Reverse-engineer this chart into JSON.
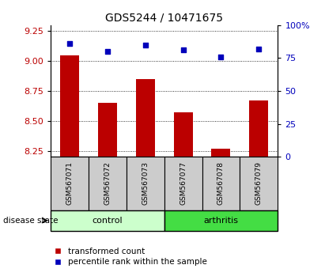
{
  "title": "GDS5244 / 10471675",
  "samples": [
    "GSM567071",
    "GSM567072",
    "GSM567073",
    "GSM567077",
    "GSM567078",
    "GSM567079"
  ],
  "transformed_count": [
    9.05,
    8.65,
    8.85,
    8.57,
    8.27,
    8.67
  ],
  "percentile_rank": [
    86,
    80,
    85,
    81,
    76,
    82
  ],
  "ylim_left": [
    8.2,
    9.3
  ],
  "ylim_right": [
    0,
    100
  ],
  "yticks_left": [
    8.25,
    8.5,
    8.75,
    9.0,
    9.25
  ],
  "yticks_right": [
    0,
    25,
    50,
    75,
    100
  ],
  "bar_color": "#bb0000",
  "dot_color": "#0000bb",
  "control_label": "control",
  "arthritis_label": "arthritis",
  "disease_label": "disease state",
  "legend_bar": "transformed count",
  "legend_dot": "percentile rank within the sample",
  "control_color": "#ccffcc",
  "arthritis_color": "#44dd44",
  "tick_bg_color": "#cccccc",
  "bar_bottom": 8.2
}
